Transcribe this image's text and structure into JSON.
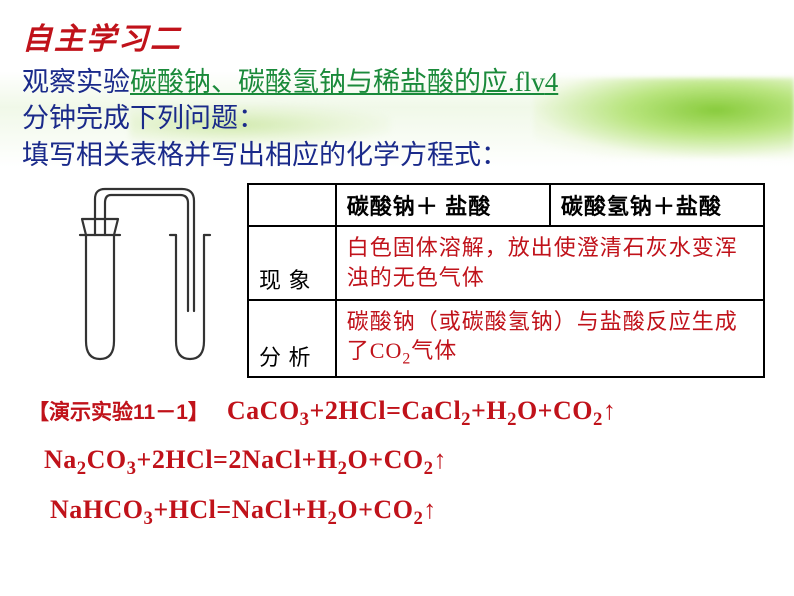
{
  "title": "自主学习二",
  "intro": {
    "prefix": "观察实验",
    "link": "碳酸钠、碳酸氢钠与稀盐酸的应.flv",
    "suffix_num": "4",
    "line2": "分钟完成下列问题：",
    "line3": "填写相关表格并写出相应的化学方程式："
  },
  "table": {
    "col1_header": "碳酸钠＋ 盐酸",
    "col2_header": "碳酸氢钠＋盐酸",
    "row1_label": "现 象",
    "row1_text": "白色固体溶解，放出使澄清石灰水变浑浊的无色气体",
    "row2_label": "分 析",
    "row2_text_a": "碳酸钠（或碳酸氢钠）与盐酸反应生成了CO",
    "row2_text_b": "气体",
    "row2_sub": "2"
  },
  "demo_label": "【演示实验11－1】",
  "equations": {
    "eq1": "CaCO<sub>3</sub>+2HCl=CaCl<sub>2</sub>+H<sub>2</sub>O+CO<sub>2</sub>↑",
    "eq2": "Na<sub>2</sub>CO<sub>3</sub>+2HCl=2NaCl+H<sub>2</sub>O+CO<sub>2</sub>↑",
    "eq3": "NaHCO<sub>3</sub>+HCl=NaCl+H<sub>2</sub>O+CO<sub>2</sub>↑"
  },
  "colors": {
    "title_red": "#c0121a",
    "body_blue": "#1a2a8a",
    "link_green": "#1a8a3a",
    "eq_red": "#c0121a"
  },
  "diagram": {
    "type": "apparatus",
    "description": "two test tubes connected by bent glass delivery tube with stopper",
    "stroke": "#333333",
    "stroke_width": 2.2
  }
}
